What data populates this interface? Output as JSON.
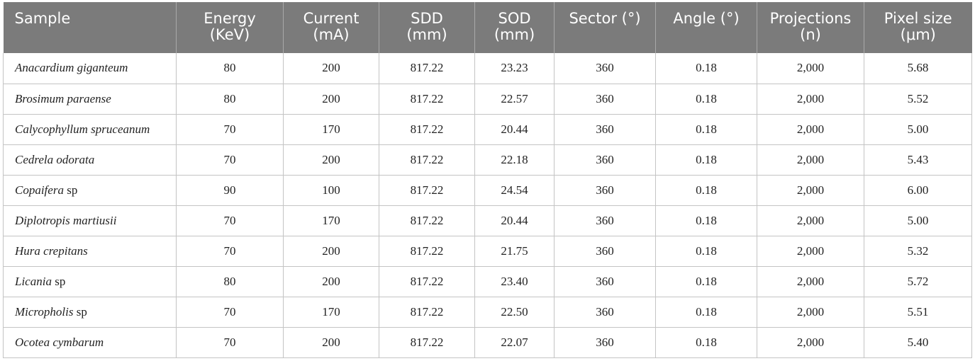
{
  "table": {
    "headers": [
      {
        "line1": "Sample",
        "line2": ""
      },
      {
        "line1": "Energy",
        "line2": "(KeV)"
      },
      {
        "line1": "Current",
        "line2": "(mA)"
      },
      {
        "line1": "SDD",
        "line2": "(mm)"
      },
      {
        "line1": "SOD",
        "line2": "(mm)"
      },
      {
        "line1": "Sector (°)",
        "line2": ""
      },
      {
        "line1": "Angle (°)",
        "line2": ""
      },
      {
        "line1": "Projections",
        "line2": "(n)"
      },
      {
        "line1": "Pixel size",
        "line2": "(μm)"
      }
    ],
    "rows": [
      {
        "italic": "Anacardium giganteum",
        "suffix": "",
        "energy": "80",
        "current": "200",
        "sdd": "817.22",
        "sod": "23.23",
        "sector": "360",
        "angle": "0.18",
        "projections": "2,000",
        "pixel": "5.68"
      },
      {
        "italic": "Brosimum paraense",
        "suffix": "",
        "energy": "80",
        "current": "200",
        "sdd": "817.22",
        "sod": "22.57",
        "sector": "360",
        "angle": "0.18",
        "projections": "2,000",
        "pixel": "5.52"
      },
      {
        "italic": "Calycophyllum spruceanum",
        "suffix": "",
        "energy": "70",
        "current": "170",
        "sdd": "817.22",
        "sod": "20.44",
        "sector": "360",
        "angle": "0.18",
        "projections": "2,000",
        "pixel": "5.00"
      },
      {
        "italic": "Cedrela odorata",
        "suffix": "",
        "energy": "70",
        "current": "200",
        "sdd": "817.22",
        "sod": "22.18",
        "sector": "360",
        "angle": "0.18",
        "projections": "2,000",
        "pixel": "5.43"
      },
      {
        "italic": "Copaifera",
        "suffix": " sp",
        "energy": "90",
        "current": "100",
        "sdd": "817.22",
        "sod": "24.54",
        "sector": "360",
        "angle": "0.18",
        "projections": "2,000",
        "pixel": "6.00"
      },
      {
        "italic": "Diplotropis martiusii",
        "suffix": "",
        "energy": "70",
        "current": "170",
        "sdd": "817.22",
        "sod": "20.44",
        "sector": "360",
        "angle": "0.18",
        "projections": "2,000",
        "pixel": "5.00"
      },
      {
        "italic": "Hura crepitans",
        "suffix": "",
        "energy": "70",
        "current": "200",
        "sdd": "817.22",
        "sod": "21.75",
        "sector": "360",
        "angle": "0.18",
        "projections": "2,000",
        "pixel": "5.32"
      },
      {
        "italic": "Licania",
        "suffix": " sp",
        "energy": "80",
        "current": "200",
        "sdd": "817.22",
        "sod": "23.40",
        "sector": "360",
        "angle": "0.18",
        "projections": "2,000",
        "pixel": "5.72"
      },
      {
        "italic": "Micropholis",
        "suffix": " sp",
        "energy": "70",
        "current": "170",
        "sdd": "817.22",
        "sod": "22.50",
        "sector": "360",
        "angle": "0.18",
        "projections": "2,000",
        "pixel": "5.51"
      },
      {
        "italic": "Ocotea cymbarum",
        "suffix": "",
        "energy": "70",
        "current": "200",
        "sdd": "817.22",
        "sod": "22.07",
        "sector": "360",
        "angle": "0.18",
        "projections": "2,000",
        "pixel": "5.40"
      }
    ]
  },
  "colors": {
    "header_background": "#7b7b7b",
    "header_text": "#ffffff",
    "grid_lines": "#c4c4c4"
  }
}
